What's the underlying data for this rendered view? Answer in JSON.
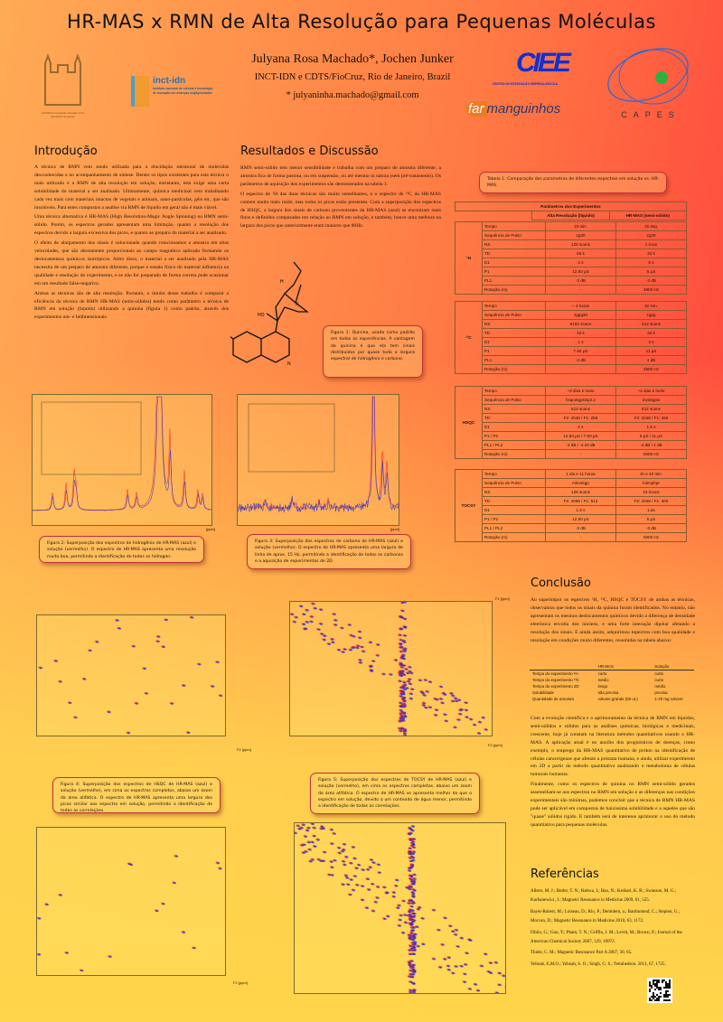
{
  "header": {
    "title": "HR-MAS x RMN de Alta Resolução para Pequenas Moléculas",
    "authors": "Julyana Rosa Machado*, Jochen Junker",
    "affiliation": "INCT-IDN e CDTS/FioCruz, Rio de Janeiro, Brazil",
    "email": "* julyaninha.machado@gmail.com"
  },
  "logos": {
    "fiocruz": "FIOCRUZ Fundação Oswaldo Cruz Ministério da Saúde",
    "inct": "inct-idn",
    "inct_sub": "instituto nacional de ciência e tecnologia de inovação em doenças negligenciadas",
    "ciee": "CIEE",
    "ciee_sub": "CENTRO DE INTEGRAÇÃO EMPRESA-ESCOLA",
    "far": "far",
    "manguinhos": "manguinhos",
    "capes": "CAPES"
  },
  "intro": {
    "heading": "Introdução",
    "paragraphs": [
      "A técnica de RMN vem sendo utilizada para a elucidação estrutural de moléculas desconhecidas e no acompanhamento de síntese. Dentre os tipos existentes para esta técnica o mais utilizado é a RMN de alta resolução em solução, entretanto, esta exige uma certa solubilidade do material a ser analisado. Ultimamente, química medicinal vem trabalhando cada vez mais com materiais intactos de vegetais e animais, nano-partículas, géis etc, que são insolúveis. Para estes compostos a análise via RMN de líquido em geral não é mais viável.",
      "Uma técnica alternativa é HR-MAS (High Resolution-Magic Angle Spinning) ou RMN semi-sólido. Porém, os espectros gerados apresentam uma limitação, quanto a resolução dos espectros devido a largura excessiva dos picos, e quanto ao preparo do material a ser analisado.",
      "O efeito de alargamento dos sinais é solucionado quando rotacionamos a amostra em altas velocidades, que são diretamente proporcionais ao campo magnético aplicado formando os deslocamentos químicos isotrópicos. Além disso, o material a ser analisado pela HR-MAS necessita de um preparo de amostra diferente, porque o estado físico do material influencia na qualidade e resolução do experimento, e se não for preparado de forma correta pode ocasionar em um resultado falso-negativo.",
      "Ambas as técnicas são de alta resolução. Portanto, o intuito desse trabalho é comparar a eficiência da técnica de RMN HR-MAS (semi-sólidos) tendo como parâmetro a técnica de RMN em solução (líquido) utilizando a quinina (figura 1) como padrão, através dos experimentos uni- e bidimensionais."
    ]
  },
  "results": {
    "heading": "Resultados e Discussão",
    "paragraphs": [
      "RMN semi-sólido tem menor sensibilidade e trabalha com um preparo de amostra diferente, a amostra fica de forma pastosa, ou em suspensão, ou até mesmo in natura (sem pré-tratamento). Os parâmetros de aquisição dos experimentos são demonstrados na tabela 1.",
      "O espectro de ¹H das duas técnicas são muito semelhantes, e o espectro de ¹³C da HR-MAS contem muito mais ruído, mas todos os picos estão presentes. Com a superposição dos espectros de HSQC, a largura dos sinais de carbono provenientes da HR-MAS (azul) se encontram mais finos e definidos comparados em relação ao RMN em solução, e também, houve uma melhora na largura dos picos que anteriormente eram maiores que 80Hz."
    ]
  },
  "figures": {
    "fig1": "Figura 1: Quinina, usada como padrão em todas as experiências. A vantagem da quinina é que ela tem sinais distribuidos por quase toda a largura espectral de hidrogênio e carbono.",
    "fig2": "Figura 2: Superposição dos espectros de hidrogênio de HR-MAS (azul) e solução (vermelho). O espectro de HR-MAS apresenta uma resolução muito boa, permitindo a identificação de todos os hidrogen-",
    "fig3": "Figura 3: Superposição dos espectros de carbono de HR-MAS (azul) e solução (vermelho). O espectro de HR-MAS apresenta uma largura de linha de aprox. 15 Hz, permitindo a identificação de todos os carbonos e a aquisição de experimentos de 2D.",
    "fig4": "Figura 4: Superposição dos espectros de HSQC de HR-MAS (azul) e solução (vermelho), em cima os espectros completos, abaixo um zoom da área alifática. O espectro de HR-MAS apresenta uma largura dos picos similar aos espectro em solução, permitindo a identificação de todas as correlações.",
    "fig5": "Figura 5: Superposição dos espectros de TOCSY de HR-MAS (azul) e solução (vermelho), em cima os espectros completos, abaixo um zoom da área alifática. O espectro de HR-MAS se apresenta melhor do que o espectro em solução, devido a um conteúdo de água menor, permitindo a identificação de todas as correlações.",
    "axis_unit": "F2 [ppm]",
    "axis_unit_1d": "[ppm]",
    "axis_f1": "F1 [ppm]",
    "molecule_labels": {
      "ho": "HO",
      "n": "N",
      "h": "H"
    }
  },
  "table": {
    "caption": "Tabela 1: Comparação dos parametros de diferentes espectros em solução vs. HR-MAS.",
    "title": "Parâmetros dos Experimentos",
    "col_liquid": "Alta Resolução (líquido)",
    "col_hrmas": "HR-MAS (semi-sólido)",
    "blocks": [
      {
        "label": "¹H",
        "rows": [
          [
            "Tempo",
            "19 min.",
            "15 seg."
          ],
          [
            "Sequência de Pulso",
            "zg30",
            "zg30"
          ],
          [
            "NS",
            "128 scans",
            "1 scan"
          ],
          [
            "TD",
            "65 k",
            "32 k"
          ],
          [
            "D1",
            "2 s",
            "8 s"
          ],
          [
            "P1",
            "12.50 µS",
            "5 µS"
          ],
          [
            "PL1",
            "-3 dB",
            "-3 dB"
          ],
          [
            "Rotação (ro)",
            "-",
            "4800 Hz"
          ]
        ]
      },
      {
        "label": "¹³C",
        "rows": [
          [
            "Tempo",
            "~ 4 horas",
            "32 min."
          ],
          [
            "Sequência de Pulso",
            "zgpg30",
            "zgpg"
          ],
          [
            "NS",
            "8192 scans",
            "512 scans"
          ],
          [
            "TD",
            "32 k",
            "32 k"
          ],
          [
            "D1",
            "1 s",
            "3 s"
          ],
          [
            "P1",
            "7.80 µS",
            "11 µS"
          ],
          [
            "PL1",
            "-4 dB",
            "4 dB"
          ],
          [
            "Rotação (ro)",
            "-",
            "4500 Hz"
          ]
        ]
      },
      {
        "label": "HSQC",
        "rows": [
          [
            "Tempo",
            "~3 dias e meio",
            "~2 dias e meio"
          ],
          [
            "Sequência de Pulso",
            "hsqcetgpsisp2.2",
            "invietgpsi"
          ],
          [
            "NS",
            "512 scans",
            "512 scans"
          ],
          [
            "TD",
            "F2: 2048 / F1: 256",
            "F2: 2048 / F1: 256"
          ],
          [
            "D1",
            "2 s",
            "1.5 s"
          ],
          [
            "P1 / P2",
            "12.50 µS / 7.80 µS",
            "5 µS / 11 µS"
          ],
          [
            "PL1 / PL2",
            "-3 dB / -4.20 dB",
            "-3 dB / 4 dB"
          ],
          [
            "Rotação (ro)",
            "-",
            "5000 Hz"
          ]
        ]
      },
      {
        "label": "TOCSY",
        "rows": [
          [
            "Tempo",
            "1 dia e 11 horas",
            "1h e 40 min."
          ],
          [
            "Sequência de Pulso",
            "mlevetgp",
            "mlevphpr"
          ],
          [
            "NS",
            "128 scans",
            "16 scans"
          ],
          [
            "TD",
            "F2: 4096 / F1: 512",
            "F2: 2048 / F1: 300"
          ],
          [
            "D1",
            "1.5 s",
            "1.5s"
          ],
          [
            "P1 / P2",
            "12.50 µS",
            "5 µS"
          ],
          [
            "PL1 / PL2",
            "-3 dB",
            "-3 dB"
          ],
          [
            "Rotação (ro)",
            "-",
            "5000 Hz"
          ]
        ]
      }
    ]
  },
  "conclusion": {
    "heading": "Conclusão",
    "p1": "Ao superimpor os espectros ¹H, ¹³C, HSQC e TOCSY de ambas as técnicas, observamos que todos os sinais da quinina foram identificados. No entanto, não apresentam os mesmos deslocamentos químicos devido a diferença de densidade eletrônica envolta dos núcleos, e uma forte interação dipolar afetando a resolução dos sinais. E ainda assim, adquirimos espectros com boa qualidade e resolução em condições muito diferentes, resumidas na tabela abaixo:",
    "summary": {
      "headers": [
        "",
        "HR-MAS",
        "Solução"
      ],
      "rows": [
        [
          "Tempo do experimento ¹H",
          "curto",
          "curto"
        ],
        [
          "Tempo do experimento ¹³C",
          "médio",
          "curto"
        ],
        [
          "Tempo do experimento 2D",
          "longo",
          "médio"
        ],
        [
          "Solubilidade",
          "não precisa",
          "precisa"
        ],
        [
          "Quantidade de amostra",
          "volume grande (50 uL)",
          "1-20 mg solvent"
        ]
      ]
    },
    "p2": "Com a evolução científica e o aprimoramento da técnica de RMN em líquidos, semi-sólidos e sólidos para as análises químicas, biológicas e medicinais, crescente, hoje já constam na literatura métodos quantitativos usando a HR-MAS. A aplicação atual é no auxílio dos prognósticos de doenças, como exemplo, o emprego da HR-MAS quantitativo de próton na identificação de células cancerígenas que afetam a próstata humana, e ainda, utilizar experimento em 2D a partir do método quantitativo analisando o metaboloma de células tumorais humanas.",
    "p3": "Finalmente, como os espectros de quinina no RMN semi-sólido gerados assemelham-se aos espectros no RMN em solução e as diferenças nas condições experimentais são mínimas, podemos concluir que a técnica de RMN HR-MAS pode ser aplicável em compostos de baixíssima solubilidade e a aqueles que são \"quase\" sólidos rígido. E também será de interesse aprimorar o uso do método quantitativo para pequenas moléculas."
  },
  "references": {
    "heading": "Referências",
    "items": [
      "Albers, M. J.; Butler, T. N.; Rahwa, I.; Bao, N.; Keshari, K. R.; Swanson, M. G.; Kurhanewicz, J.; Magnetic Resonance in Medicine 2009, 61, 525.",
      "Bayet-Robert, M.; Loiseau, D.; Rio, P.; Demidem, a.; Barthomeuf, C.; Stepien, G.; Morvan, D.; Magnetic Resonance in Medicine 2010, 63, 1172.",
      "Fibiio, G.; Guo, Y.; Pham, T. N.; Griffin, J. M.; Levitt, M.; Brown, P.; Journal of the American Chemical Society 2007, 129, 10972.",
      "Thiele, C. M.; Magnetic Resonance Part A 2007, 30, 65.",
      "Yeboah, E.M.O.; Yeboah, S. O.; Singh, G. S.; Tetrahedron. 2011, 67, 1725."
    ]
  },
  "colors": {
    "hrmas": "#2030e0",
    "solution": "#ff2020",
    "caption_border": "#c0303a",
    "capes_blue": "#2a6ad0",
    "capes_green": "#30b040",
    "ciee_blue": "#1030d0"
  }
}
